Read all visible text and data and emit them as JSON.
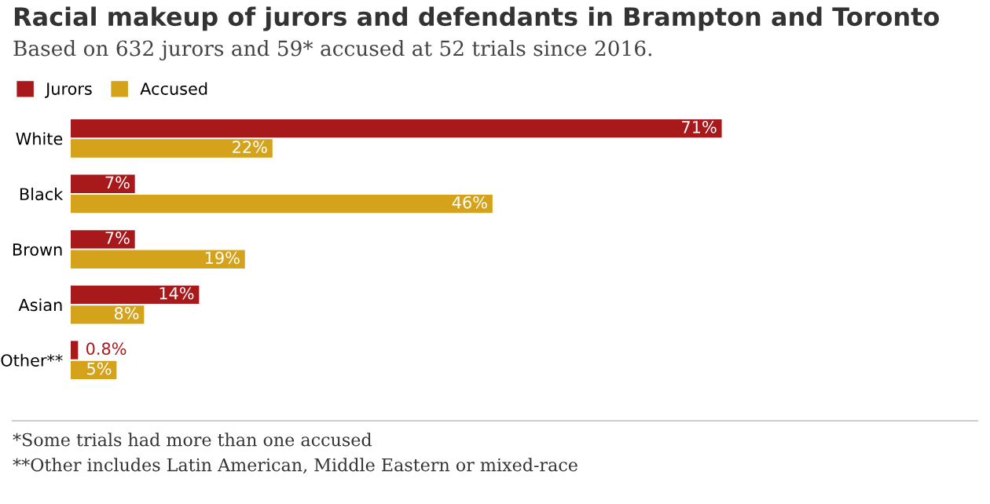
{
  "chart_data": {
    "type": "bar",
    "orientation": "horizontal",
    "title": "Racial makeup of jurors and defendants in Brampton and Toronto",
    "subtitle": "Based on 632 jurors and 59* accused at 52 trials since 2016.",
    "categories": [
      "White",
      "Black",
      "Brown",
      "Asian",
      "Other**"
    ],
    "series": [
      {
        "name": "Jurors",
        "color": "#a8191b",
        "values": [
          71,
          7,
          7,
          14,
          0.8
        ],
        "value_labels": [
          "71%",
          "7%",
          "7%",
          "14%",
          "0.8%"
        ]
      },
      {
        "name": "Accused",
        "color": "#d4a21b",
        "values": [
          22,
          46,
          19,
          8,
          5
        ],
        "value_labels": [
          "22%",
          "46%",
          "19%",
          "8%",
          "5%"
        ]
      }
    ],
    "tick_labels": "y",
    "legend": "top left",
    "grid": false,
    "annotations": [
      "*Some trials had more than one accused",
      "**Other includes Latin American, Middle Eastern or mixed-race"
    ]
  }
}
